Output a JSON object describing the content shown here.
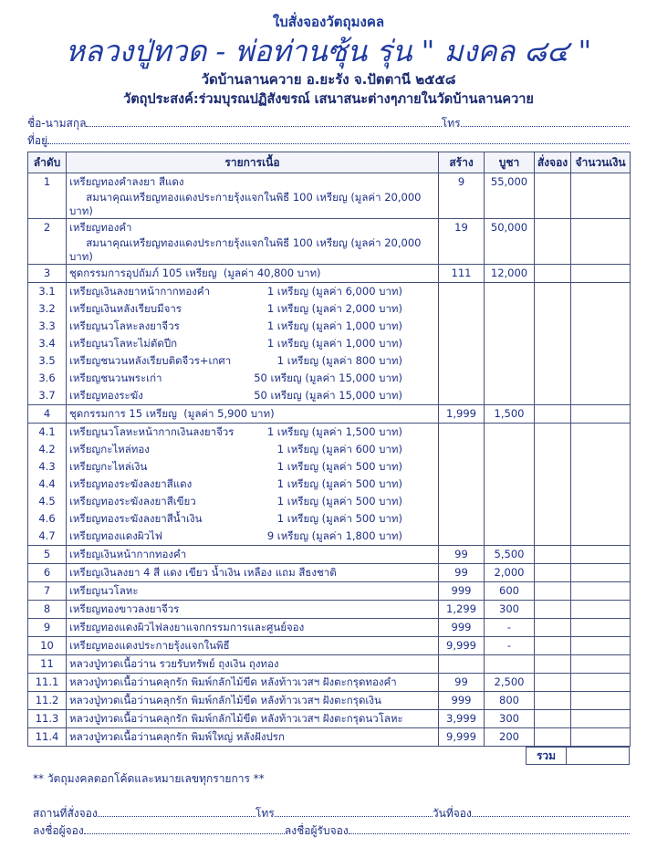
{
  "header": {
    "subtitle": "ใบสั่งจองวัตถุมงคล",
    "title": "หลวงปู่ทวด - พ่อท่านซุ้น รุ่น \" มงคล ๘๔ \"",
    "location": "วัดบ้านลานควาย อ.ยะรัง จ.ปัตตานี ๒๕๕๘",
    "purpose": "วัตถุประสงค์:ร่วมบุรณปฏิสังขรณ์ เสนาสนะต่างๆภายในวัดบ้านลานควาย"
  },
  "form": {
    "name_label": "ชื่อ-นามสกุล",
    "phone_label": "โทร",
    "address_label": "ที่อยู่"
  },
  "table": {
    "columns": [
      "ลำดับ",
      "รายการเนื้อ",
      "สร้าง",
      "บูชา",
      "สั่งจอง",
      "จำนวนเงิน"
    ],
    "rows": [
      {
        "no": "1",
        "desc": "เหรียญทองคำลงยา สีแดง",
        "built": "9",
        "price": "55,000",
        "group": true
      },
      {
        "no": "",
        "desc": "     สมนาคุณเหรียญทองแดงประกายรุ้งแจกในพิธี 100 เหรียญ (มูลค่า 20,000 บาท)",
        "built": "",
        "price": ""
      },
      {
        "no": "2",
        "desc": "เหรียญทองคำ",
        "built": "19",
        "price": "50,000",
        "group": true
      },
      {
        "no": "",
        "desc": "     สมนาคุณเหรียญทองแดงประกายรุ้งแจกในพิธี 100 เหรียญ (มูลค่า 20,000 บาท)",
        "built": "",
        "price": ""
      },
      {
        "no": "3",
        "desc": "ชุดกรรมการอุปถัมภ์ 105 เหรียญ  (มูลค่า 40,800 บาท)",
        "built": "111",
        "price": "12,000",
        "group": true
      },
      {
        "no": "3.1",
        "desc": "เหรียญเงินลงยาหน้ากากทองคำ",
        "qty": "1 เหรียญ (มูลค่า 6,000 บาท)",
        "group": true
      },
      {
        "no": "3.2",
        "desc": "เหรียญเงินหลังเรียบมีจาร",
        "qty": "1 เหรียญ (มูลค่า 2,000 บาท)"
      },
      {
        "no": "3.3",
        "desc": "เหรียญนวโลหะลงยาจีวร",
        "qty": "1 เหรียญ (มูลค่า 1,000 บาท)"
      },
      {
        "no": "3.4",
        "desc": "เหรียญนวโลหะไม่ตัดปีก",
        "qty": "1 เหรียญ (มูลค่า 1,000 บาท)"
      },
      {
        "no": "3.5",
        "desc": "เหรียญชนวนหลังเรียบติดจีวร+เกศา",
        "qty": "1 เหรียญ   (มูลค่า 800 บาท)"
      },
      {
        "no": "3.6",
        "desc": "เหรียญชนวนพระเก่า",
        "qty": "50 เหรียญ (มูลค่า 15,000 บาท)"
      },
      {
        "no": "3.7",
        "desc": "เหรียญทองระฆัง",
        "qty": "50 เหรียญ (มูลค่า 15,000 บาท)"
      },
      {
        "no": "4",
        "desc": "ชุดกรรมการ 15 เหรียญ  (มูลค่า 5,900 บาท)",
        "built": "1,999",
        "price": "1,500",
        "group": true
      },
      {
        "no": "4.1",
        "desc": "เหรียญนวโลหะหน้ากากเงินลงยาจีวร",
        "qty": "1 เหรียญ (มูลค่า 1,500 บาท)",
        "group": true
      },
      {
        "no": "4.2",
        "desc": "เหรียญกะไหล่ทอง",
        "qty": "1 เหรียญ (มูลค่า 600 บาท)"
      },
      {
        "no": "4.3",
        "desc": "เหรียญกะไหล่เงิน",
        "qty": "1 เหรียญ (มูลค่า 500 บาท)"
      },
      {
        "no": "4.4",
        "desc": "เหรียญทองระฆังลงยาสีแดง",
        "qty": "1 เหรียญ (มูลค่า 500 บาท)"
      },
      {
        "no": "4.5",
        "desc": "เหรียญทองระฆังลงยาสีเขียว",
        "qty": "1 เหรียญ (มูลค่า 500 บาท)"
      },
      {
        "no": "4.6",
        "desc": "เหรียญทองระฆังลงยาสีน้ำเงิน",
        "qty": "1 เหรียญ (มูลค่า 500 บาท)"
      },
      {
        "no": "4.7",
        "desc": "เหรียญทองแดงผิวไฟ",
        "qty": "9 เหรียญ (มูลค่า 1,800 บาท)"
      },
      {
        "no": "5",
        "desc": "เหรียญเงินหน้ากากทองคำ",
        "built": "99",
        "price": "5,500",
        "group": true
      },
      {
        "no": "6",
        "desc": "เหรียญเงินลงยา 4 สี แดง เขียว น้ำเงิน เหลือง แถม สีธงชาติ",
        "built": "99",
        "price": "2,000",
        "group": true
      },
      {
        "no": "7",
        "desc": "เหรียญนวโลหะ",
        "built": "999",
        "price": "600",
        "group": true
      },
      {
        "no": "8",
        "desc": "เหรียญทองขาวลงยาจีวร",
        "built": "1,299",
        "price": "300",
        "group": true
      },
      {
        "no": "9",
        "desc": "เหรียญทองแดงผิวไฟลงยาแจกกรรมการและศูนย์จอง",
        "built": "999",
        "price": "-",
        "group": true
      },
      {
        "no": "10",
        "desc": "เหรียญทองแดงประกายรุ้งแจกในพิธี",
        "built": "9,999",
        "price": "-",
        "group": true
      },
      {
        "no": "11",
        "desc": "หลวงปู่ทวดเนื้อว่าน รวยรับทรัพย์ ถุงเงิน ถุงทอง",
        "built": "",
        "price": "",
        "group": true
      },
      {
        "no": "11.1",
        "desc": "หลวงปู่ทวดเนื้อว่านคลุกรัก พิมพ์กลักไม้ขีด หลังท้าวเวสฯ ฝังตะกรุดทองคำ",
        "built": "99",
        "price": "2,500",
        "group": true
      },
      {
        "no": "11.2",
        "desc": "หลวงปู่ทวดเนื้อว่านคลุกรัก พิมพ์กลักไม้ขีด หลังท้าวเวสฯ ฝังตะกรุดเงิน",
        "built": "999",
        "price": "800",
        "group": true
      },
      {
        "no": "11.3",
        "desc": "หลวงปู่ทวดเนื้อว่านคลุกรัก พิมพ์กลักไม้ขีด หลังท้าวเวสฯ ฝังตะกรุดนวโลหะ",
        "built": "3,999",
        "price": "300",
        "group": true
      },
      {
        "no": "11.4",
        "desc": "หลวงปู่ทวดเนื้อว่านคลุกรัก พิมพ์ใหญ่ หลังฝังปรก",
        "built": "9,999",
        "price": "200",
        "group": true
      }
    ],
    "total_label": "รวม"
  },
  "footer": {
    "note": "** วัตถุมงคลตอกโค้ดและหมายเลขทุกรายการ **",
    "place_label": "สถานที่สั่งจอง",
    "phone_label": "โทร",
    "date_label": "วันที่จอง",
    "orderer_sign_label": "ลงชื่อผู้จอง",
    "receiver_sign_label": "ลงชื่อผู้รับจอง"
  }
}
